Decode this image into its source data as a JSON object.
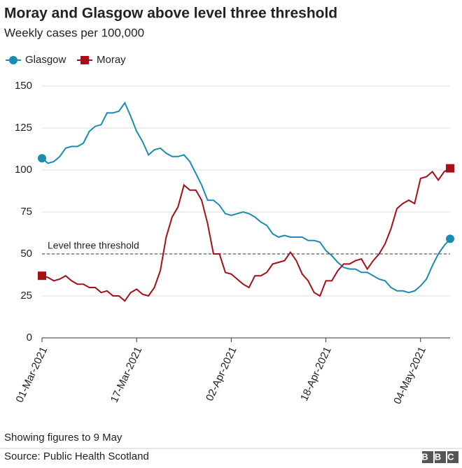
{
  "chart_data": {
    "type": "line",
    "title": "Moray and Glasgow above level three threshold",
    "subtitle": "Weekly cases per 100,000",
    "x": [
      "2021-03-01",
      "2021-03-02",
      "2021-03-03",
      "2021-03-04",
      "2021-03-05",
      "2021-03-06",
      "2021-03-07",
      "2021-03-08",
      "2021-03-09",
      "2021-03-10",
      "2021-03-11",
      "2021-03-12",
      "2021-03-13",
      "2021-03-14",
      "2021-03-15",
      "2021-03-16",
      "2021-03-17",
      "2021-03-18",
      "2021-03-19",
      "2021-03-20",
      "2021-03-21",
      "2021-03-22",
      "2021-03-23",
      "2021-03-24",
      "2021-03-25",
      "2021-03-26",
      "2021-03-27",
      "2021-03-28",
      "2021-03-29",
      "2021-03-30",
      "2021-03-31",
      "2021-04-01",
      "2021-04-02",
      "2021-04-03",
      "2021-04-04",
      "2021-04-05",
      "2021-04-06",
      "2021-04-07",
      "2021-04-08",
      "2021-04-09",
      "2021-04-10",
      "2021-04-11",
      "2021-04-12",
      "2021-04-13",
      "2021-04-14",
      "2021-04-15",
      "2021-04-16",
      "2021-04-17",
      "2021-04-18",
      "2021-04-19",
      "2021-04-20",
      "2021-04-21",
      "2021-04-22",
      "2021-04-23",
      "2021-04-24",
      "2021-04-25",
      "2021-04-26",
      "2021-04-27",
      "2021-04-28",
      "2021-04-29",
      "2021-04-30",
      "2021-05-01",
      "2021-05-02",
      "2021-05-03",
      "2021-05-04",
      "2021-05-05",
      "2021-05-06",
      "2021-05-07",
      "2021-05-08",
      "2021-05-09"
    ],
    "series": [
      {
        "name": "Glasgow",
        "color": "#1a8bb3",
        "marker": "circle",
        "values": [
          107,
          104,
          105,
          108,
          113,
          114,
          114,
          116,
          123,
          126,
          127,
          134,
          134,
          135,
          140,
          132,
          123,
          117,
          109,
          112,
          113,
          110,
          108,
          108,
          109,
          105,
          98,
          91,
          82,
          82,
          79,
          74,
          73,
          74,
          75,
          74,
          72,
          69,
          67,
          62,
          60,
          61,
          60,
          60,
          60,
          58,
          58,
          57,
          52,
          49,
          45,
          42,
          41,
          41,
          39,
          39,
          37,
          35,
          34,
          30,
          28,
          28,
          27,
          28,
          31,
          35,
          43,
          50,
          55,
          59
        ]
      },
      {
        "name": "Moray",
        "color": "#a50f15",
        "marker": "square",
        "values": [
          37,
          36,
          34,
          35,
          37,
          34,
          32,
          32,
          30,
          30,
          27,
          28,
          25,
          25,
          22,
          27,
          29,
          26,
          25,
          30,
          40,
          60,
          72,
          78,
          91,
          88,
          88,
          82,
          68,
          50,
          50,
          39,
          38,
          35,
          32,
          30,
          37,
          37,
          39,
          44,
          45,
          46,
          51,
          46,
          38,
          34,
          27,
          25,
          34,
          34,
          40,
          44,
          44,
          46,
          47,
          41,
          46,
          50,
          56,
          65,
          77,
          80,
          82,
          80,
          95,
          96,
          99,
          94,
          99,
          101
        ]
      }
    ],
    "xlim": [
      "2021-03-01",
      "2021-05-09"
    ],
    "xticks": [
      {
        "value": "2021-03-01",
        "label": "01-Mar-2021"
      },
      {
        "value": "2021-03-17",
        "label": "17-Mar-2021"
      },
      {
        "value": "2021-04-02",
        "label": "02-Apr-2021"
      },
      {
        "value": "2021-04-18",
        "label": "18-Apr-2021"
      },
      {
        "value": "2021-05-04",
        "label": "04-May-2021"
      }
    ],
    "ylim": [
      0,
      150
    ],
    "yticks": [
      0,
      25,
      50,
      75,
      100,
      125,
      150
    ],
    "grid": true,
    "legend": "top-left",
    "threshold": {
      "value": 50,
      "label": "Level three threshold"
    },
    "note": "Showing figures to 9 May",
    "source": "Source: Public Health Scotland",
    "logo": "BBC"
  }
}
